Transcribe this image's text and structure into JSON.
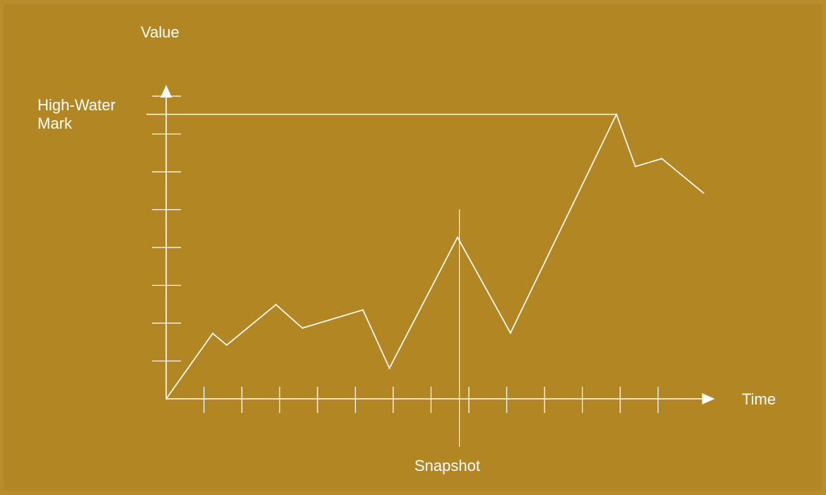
{
  "chart_data": {
    "type": "line",
    "title": "",
    "xlabel": "Time",
    "ylabel": "Value",
    "xlim": [
      0,
      14.5
    ],
    "ylim": [
      0,
      8.3
    ],
    "xticks": [
      1,
      2,
      3,
      4,
      5,
      6,
      7,
      8,
      9,
      10,
      11,
      12,
      13
    ],
    "yticks": [
      1,
      2,
      3,
      4,
      5,
      6,
      7,
      8
    ],
    "grid": false,
    "legend": "none",
    "series": [
      {
        "points": [
          [
            0,
            0
          ],
          [
            1.23,
            1.73
          ],
          [
            1.6,
            1.42
          ],
          [
            2.9,
            2.49
          ],
          [
            3.6,
            1.87
          ],
          [
            5.2,
            2.35
          ],
          [
            5.9,
            0.81
          ],
          [
            7.7,
            4.27
          ],
          [
            9.1,
            1.74
          ],
          [
            11.9,
            7.52
          ],
          [
            12.4,
            6.14
          ],
          [
            13.1,
            6.35
          ],
          [
            14.2,
            5.44
          ]
        ]
      }
    ],
    "annotations": [
      {
        "label": "High-Water Mark",
        "kind": "horizontal-line",
        "y": 7.52
      },
      {
        "label": "Snapshot",
        "kind": "vertical-line",
        "x": 7.75
      }
    ]
  },
  "colors": {
    "background": "#b18623",
    "frame": "#b88c2a",
    "ink": "#ffffff"
  }
}
